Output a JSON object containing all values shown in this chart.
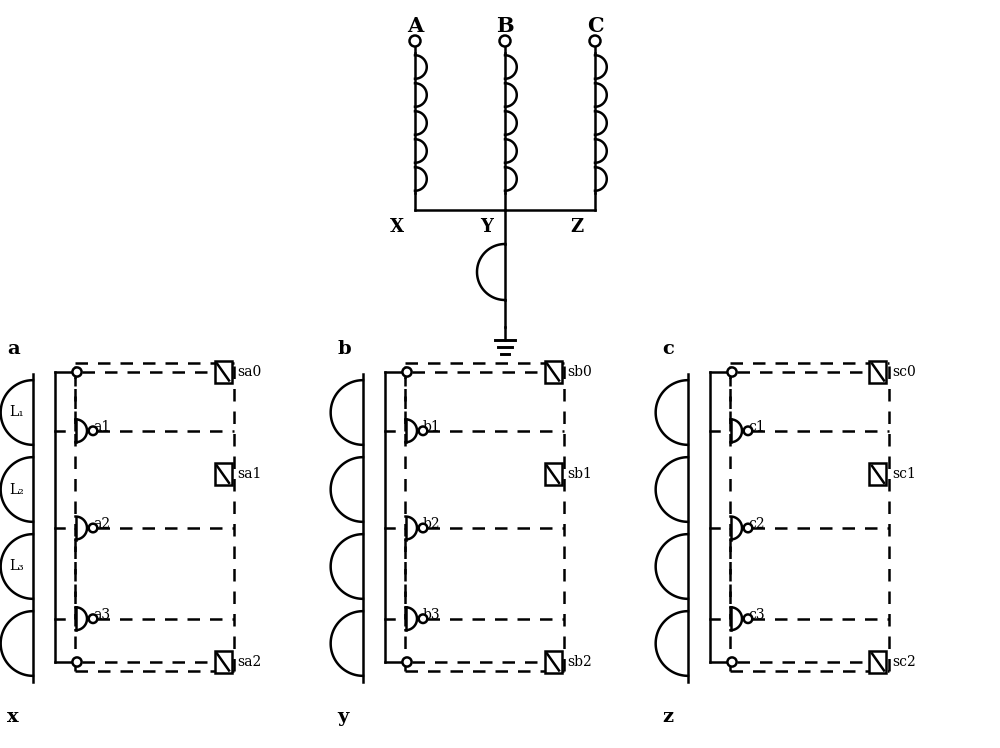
{
  "bg": "#ffffff",
  "lc": "#000000",
  "lw": 1.8,
  "top_labels": [
    "A",
    "B",
    "C"
  ],
  "xyz_labels": [
    "X",
    "Y",
    "Z"
  ],
  "panel_top_labels": [
    "a",
    "b",
    "c"
  ],
  "panel_bot_labels": [
    "x",
    "y",
    "z"
  ],
  "L_labels": [
    "L₁",
    "L₂",
    "L₃"
  ],
  "sa_labels": [
    "sa0",
    "sa1",
    "sa2"
  ],
  "sb_labels": [
    "sb0",
    "sb1",
    "sb2"
  ],
  "sc_labels": [
    "sc0",
    "sc1",
    "sc2"
  ],
  "sub_a": [
    "a1",
    "a2",
    "a3"
  ],
  "sub_b": [
    "b1",
    "b2",
    "b3"
  ],
  "sub_c": [
    "c1",
    "c2",
    "c3"
  ]
}
